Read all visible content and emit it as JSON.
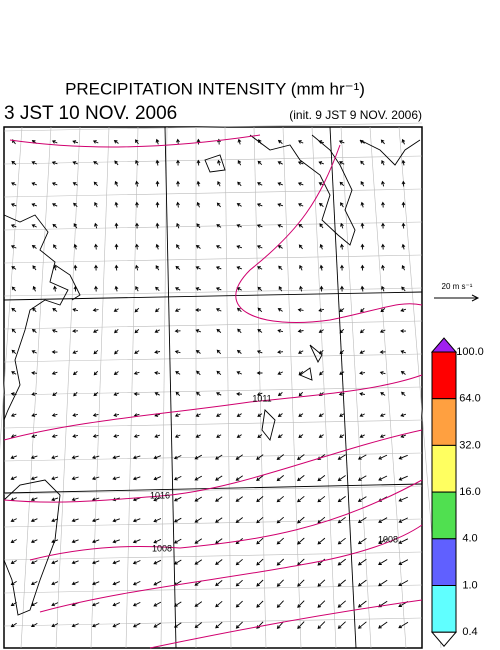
{
  "header": {
    "title": "PRECIPITATION INTENSITY (mm hr⁻¹)",
    "valid_time": "3 JST 10 NOV. 2006",
    "init_time": "(init. 9 JST 9 NOV. 2006)"
  },
  "vector_legend": "20 m s⁻¹",
  "isobar_labels": [
    "1011",
    "1016",
    "1008",
    "1008"
  ],
  "colorbar": {
    "labels": [
      "100.0",
      "64.0",
      "32.0",
      "16.0",
      "4.0",
      "1.0",
      "0.4"
    ],
    "colors": [
      "#a020f0",
      "#ff0000",
      "#ffa040",
      "#ffff60",
      "#50e050",
      "#6060ff",
      "#60ffff",
      "#ffffff"
    ]
  }
}
